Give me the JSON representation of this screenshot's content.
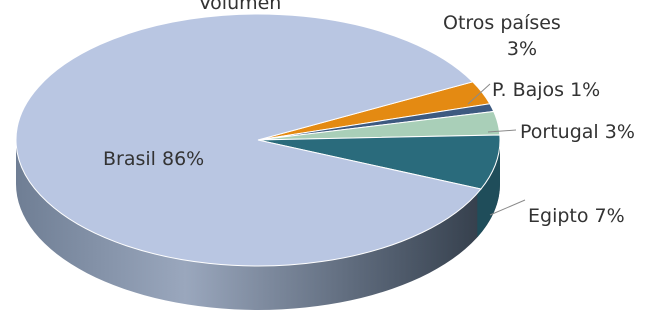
{
  "chart_data": {
    "type": "pie",
    "title": "Volumen",
    "slices": [
      {
        "name": "Brasil",
        "value": 86,
        "label": "Brasil 86%",
        "color": "#b9c6e2"
      },
      {
        "name": "Egipto",
        "value": 7,
        "label": "Egipto 7%",
        "color": "#2a6b7c"
      },
      {
        "name": "Portugal",
        "value": 3,
        "label": "Portugal 3%",
        "color": "#a9cfb8"
      },
      {
        "name": "P. Bajos",
        "value": 1,
        "label": "P. Bajos 1%",
        "color": "#3d5a80"
      },
      {
        "name": "Otros países",
        "value": 3,
        "label_line1": "Otros países",
        "label_line2": "3%",
        "color": "#e48a12"
      }
    ],
    "legend": "none",
    "style": "3d"
  }
}
